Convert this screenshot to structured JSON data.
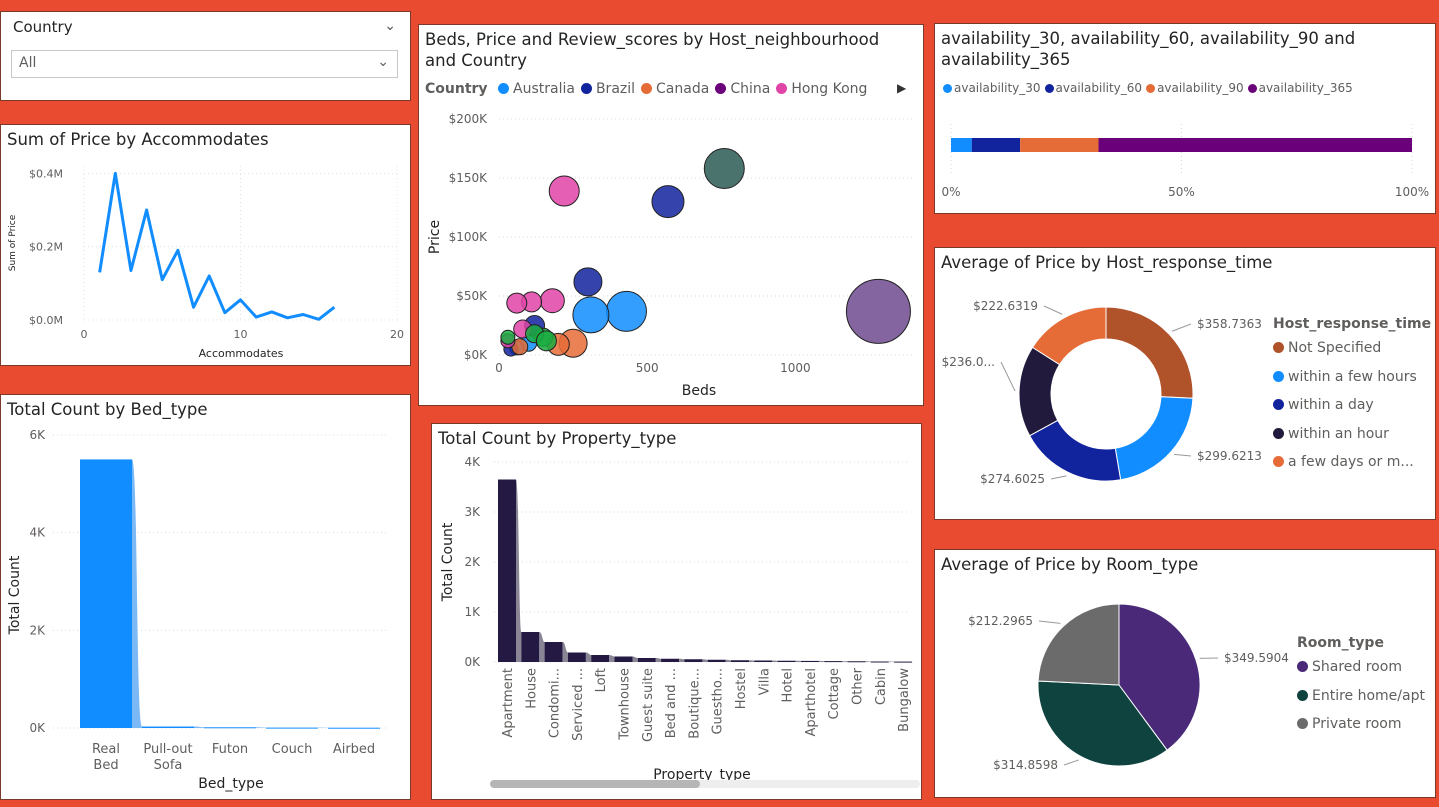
{
  "slicer": {
    "label": "Country",
    "value": "All"
  },
  "line_chart": {
    "title": "Sum of Price by Accommodates",
    "xlabel": "Accommodates",
    "ylabel": "Sum of Price",
    "yticks": [
      "$0.4M",
      "$0.2M",
      "$0.0M"
    ],
    "xticks": [
      "0",
      "10",
      "20"
    ],
    "color": "#118dff"
  },
  "bed_chart": {
    "title": "Total Count by Bed_type",
    "xlabel": "Bed_type",
    "ylabel": "Total Count",
    "yticks": [
      "6K",
      "4K",
      "2K",
      "0K"
    ],
    "cat_lines": [
      [
        "Real",
        "Bed"
      ],
      [
        "Pull-out",
        "Sofa"
      ],
      [
        "Futon"
      ],
      [
        "Couch"
      ],
      [
        "Airbed"
      ]
    ],
    "color": "#118dff"
  },
  "scatter_chart": {
    "title": "Beds, Price and Review_scores by Host_neighbourhood and Country",
    "legend_title": "Country",
    "legend": [
      {
        "name": "Australia",
        "color": "#118dff"
      },
      {
        "name": "Brazil",
        "color": "#12239e"
      },
      {
        "name": "Canada",
        "color": "#e66c37"
      },
      {
        "name": "China",
        "color": "#6b007b"
      },
      {
        "name": "Hong Kong",
        "color": "#e044a7"
      }
    ],
    "xlabel": "Beds",
    "ylabel": "Price",
    "yticks": [
      "$200K",
      "$150K",
      "$100K",
      "$50K",
      "$0K"
    ],
    "xticks": [
      "0",
      "500",
      "1000"
    ]
  },
  "property_chart": {
    "title": "Total Count by Property_type",
    "xlabel": "Property_type",
    "ylabel": "Total Count",
    "yticks": [
      "4K",
      "3K",
      "2K",
      "1K",
      "0K"
    ],
    "categories": [
      "Apartment",
      "House",
      "Condomi...",
      "Serviced ...",
      "Loft",
      "Townhouse",
      "Guest suite",
      "Bed and ...",
      "Boutique...",
      "Guestho...",
      "Hostel",
      "Villa",
      "Hotel",
      "Aparthotel",
      "Cottage",
      "Other",
      "Cabin",
      "Bungalow"
    ],
    "color": "#231942"
  },
  "stacked_chart": {
    "title": "availability_30, availability_60, availability_90 and availability_365",
    "legend": [
      {
        "name": "availability_30",
        "color": "#118dff"
      },
      {
        "name": "availability_60",
        "color": "#12239e"
      },
      {
        "name": "availability_90",
        "color": "#e66c37"
      },
      {
        "name": "availability_365",
        "color": "#6b007b"
      }
    ],
    "xticks": [
      "0%",
      "50%",
      "100%"
    ]
  },
  "donut_chart": {
    "title": "Average of Price by Host_response_time",
    "legend_title": "Host_response_time",
    "legend": [
      {
        "name": "Not Specified",
        "color": "#b0522a"
      },
      {
        "name": "within a few hours",
        "color": "#118dff"
      },
      {
        "name": "within a day",
        "color": "#12239e"
      },
      {
        "name": "within an hour",
        "color": "#211a3d"
      },
      {
        "name": "a few days or m...",
        "color": "#e66c37"
      }
    ],
    "labels": [
      "$358.7363",
      "$299.6213",
      "$274.6025",
      "$236.0...",
      "$222.6319"
    ]
  },
  "pie_chart": {
    "title": "Average of Price by Room_type",
    "legend_title": "Room_type",
    "legend": [
      {
        "name": "Shared room",
        "color": "#4a2a78"
      },
      {
        "name": "Entire home/apt",
        "color": "#0f4340"
      },
      {
        "name": "Private room",
        "color": "#6b6b6b"
      }
    ],
    "labels": [
      "$349.5904",
      "$314.8598",
      "$212.2965"
    ]
  },
  "chart_data": [
    {
      "type": "line",
      "title": "Sum of Price by Accommodates",
      "xlabel": "Accommodates",
      "ylabel": "Sum of Price",
      "x": [
        1,
        2,
        3,
        4,
        5,
        6,
        7,
        8,
        9,
        10,
        11,
        12,
        13,
        14,
        15,
        16
      ],
      "values": [
        130000,
        400000,
        135000,
        300000,
        110000,
        190000,
        35000,
        120000,
        20000,
        55000,
        8000,
        22000,
        6000,
        15000,
        2000,
        35000
      ],
      "xlim": [
        0,
        20
      ],
      "ylim": [
        0,
        420000
      ]
    },
    {
      "type": "bar",
      "title": "Total Count by Bed_type",
      "xlabel": "Bed_type",
      "ylabel": "Total Count",
      "categories": [
        "Real Bed",
        "Pull-out Sofa",
        "Futon",
        "Couch",
        "Airbed"
      ],
      "values": [
        5500,
        30,
        15,
        8,
        6
      ],
      "ylim": [
        0,
        6000
      ]
    },
    {
      "type": "scatter",
      "title": "Beds, Price and Review_scores by Host_neighbourhood and Country",
      "xlabel": "Beds",
      "ylabel": "Price",
      "xlim": [
        0,
        1400
      ],
      "ylim": [
        0,
        200000
      ],
      "series": [
        {
          "name": "Australia",
          "points": [
            [
              430,
              37000,
              20
            ],
            [
              310,
              34000,
              18
            ],
            [
              100,
              10000,
              8
            ],
            [
              60,
              6000,
              7
            ]
          ]
        },
        {
          "name": "Brazil",
          "points": [
            [
              570,
              130000,
              16
            ],
            [
              300,
              62000,
              14
            ],
            [
              120,
              25000,
              10
            ],
            [
              40,
              5000,
              7
            ]
          ]
        },
        {
          "name": "Canada",
          "points": [
            [
              250,
              10000,
              14
            ],
            [
              200,
              9000,
              11
            ],
            [
              70,
              7000,
              8
            ]
          ]
        },
        {
          "name": "China",
          "points": [
            [
              1280,
              37000,
              32
            ],
            [
              760,
              158000,
              20
            ],
            [
              150,
              15000,
              9
            ]
          ]
        },
        {
          "name": "Hong Kong",
          "points": [
            [
              220,
              139000,
              15
            ],
            [
              180,
              46000,
              12
            ],
            [
              110,
              45000,
              10
            ],
            [
              60,
              44000,
              10
            ],
            [
              80,
              22000,
              9
            ],
            [
              30,
              12000,
              7
            ]
          ]
        },
        {
          "name": "",
          "points": [
            [
              120,
              18000,
              9
            ],
            [
              160,
              12000,
              10
            ],
            [
              30,
              15000,
              7
            ]
          ]
        }
      ]
    },
    {
      "type": "bar",
      "title": "Total Count by Property_type",
      "xlabel": "Property_type",
      "ylabel": "Total Count",
      "categories": [
        "Apartment",
        "House",
        "Condomi...",
        "Serviced ...",
        "Loft",
        "Townhouse",
        "Guest suite",
        "Bed and ...",
        "Boutique...",
        "Guestho...",
        "Hostel",
        "Villa",
        "Hotel",
        "Aparthotel",
        "Cottage",
        "Other",
        "Cabin",
        "Bungalow"
      ],
      "values": [
        3650,
        600,
        400,
        190,
        140,
        110,
        80,
        65,
        55,
        45,
        35,
        30,
        25,
        22,
        18,
        15,
        10,
        8
      ],
      "ylim": [
        0,
        4000
      ]
    },
    {
      "type": "bar",
      "title": "availability_30, availability_60, availability_90 and availability_365",
      "orientation": "horizontal",
      "stacked": "100%",
      "series": [
        {
          "name": "availability_30",
          "values": [
            4.5
          ]
        },
        {
          "name": "availability_60",
          "values": [
            10.5
          ]
        },
        {
          "name": "availability_90",
          "values": [
            17
          ]
        },
        {
          "name": "availability_365",
          "values": [
            68
          ]
        }
      ],
      "xlim": [
        0,
        100
      ]
    },
    {
      "type": "pie",
      "donut": true,
      "title": "Average of Price by Host_response_time",
      "categories": [
        "Not Specified",
        "within a few hours",
        "within a day",
        "within an hour",
        "a few days or m..."
      ],
      "values": [
        358.7363,
        299.6213,
        274.6025,
        236.0,
        222.6319
      ]
    },
    {
      "type": "pie",
      "title": "Average of Price by Room_type",
      "categories": [
        "Shared room",
        "Entire home/apt",
        "Private room"
      ],
      "values": [
        349.5904,
        314.8598,
        212.2965
      ]
    }
  ]
}
